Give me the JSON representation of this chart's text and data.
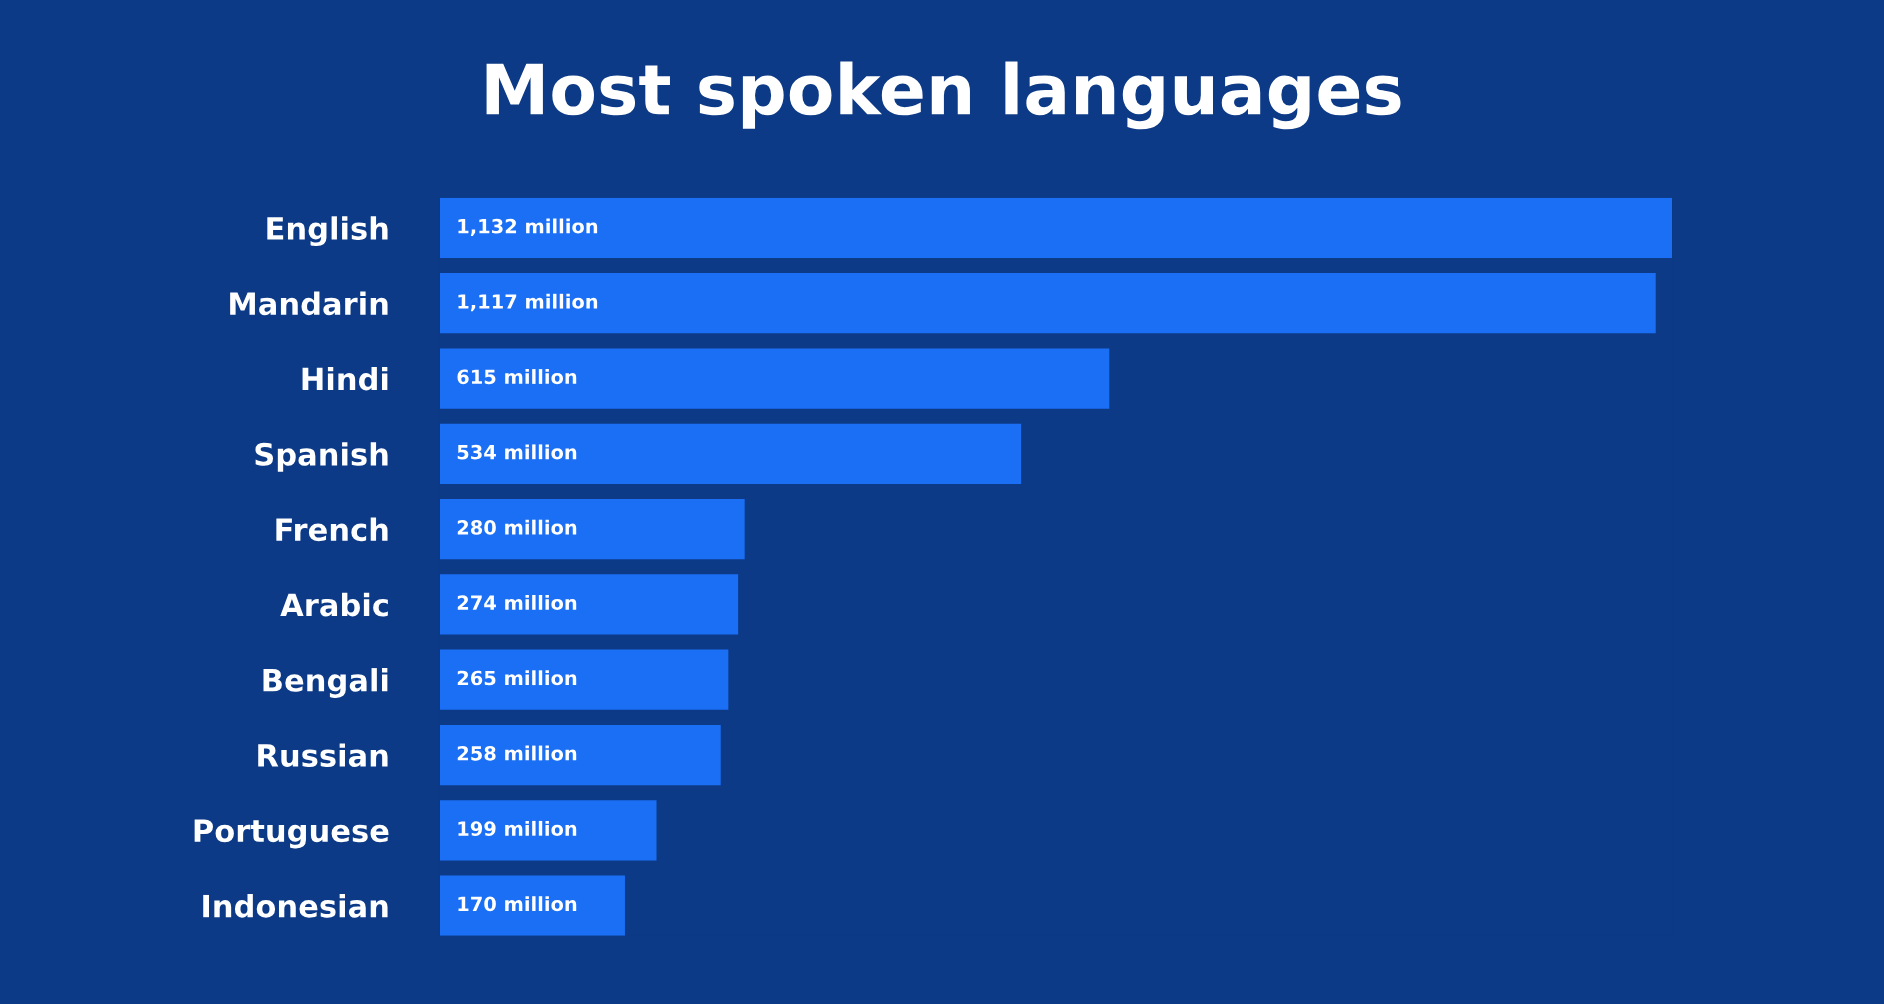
{
  "chart_data": {
    "type": "bar",
    "orientation": "horizontal",
    "title": "Most spoken languages",
    "categories": [
      "English",
      "Mandarin",
      "Hindi",
      "Spanish",
      "French",
      "Arabic",
      "Bengali",
      "Russian",
      "Portuguese",
      "Indonesian"
    ],
    "values": [
      1132,
      1117,
      615,
      534,
      280,
      274,
      265,
      258,
      199,
      170
    ],
    "value_labels": [
      "1,132 million",
      "1,117 million",
      "615 million",
      "534 million",
      "280 million",
      "274 million",
      "265 million",
      "258 million",
      "199 million",
      "170 million"
    ],
    "color": "#1a6ff5",
    "grid": false,
    "legend": false
  }
}
